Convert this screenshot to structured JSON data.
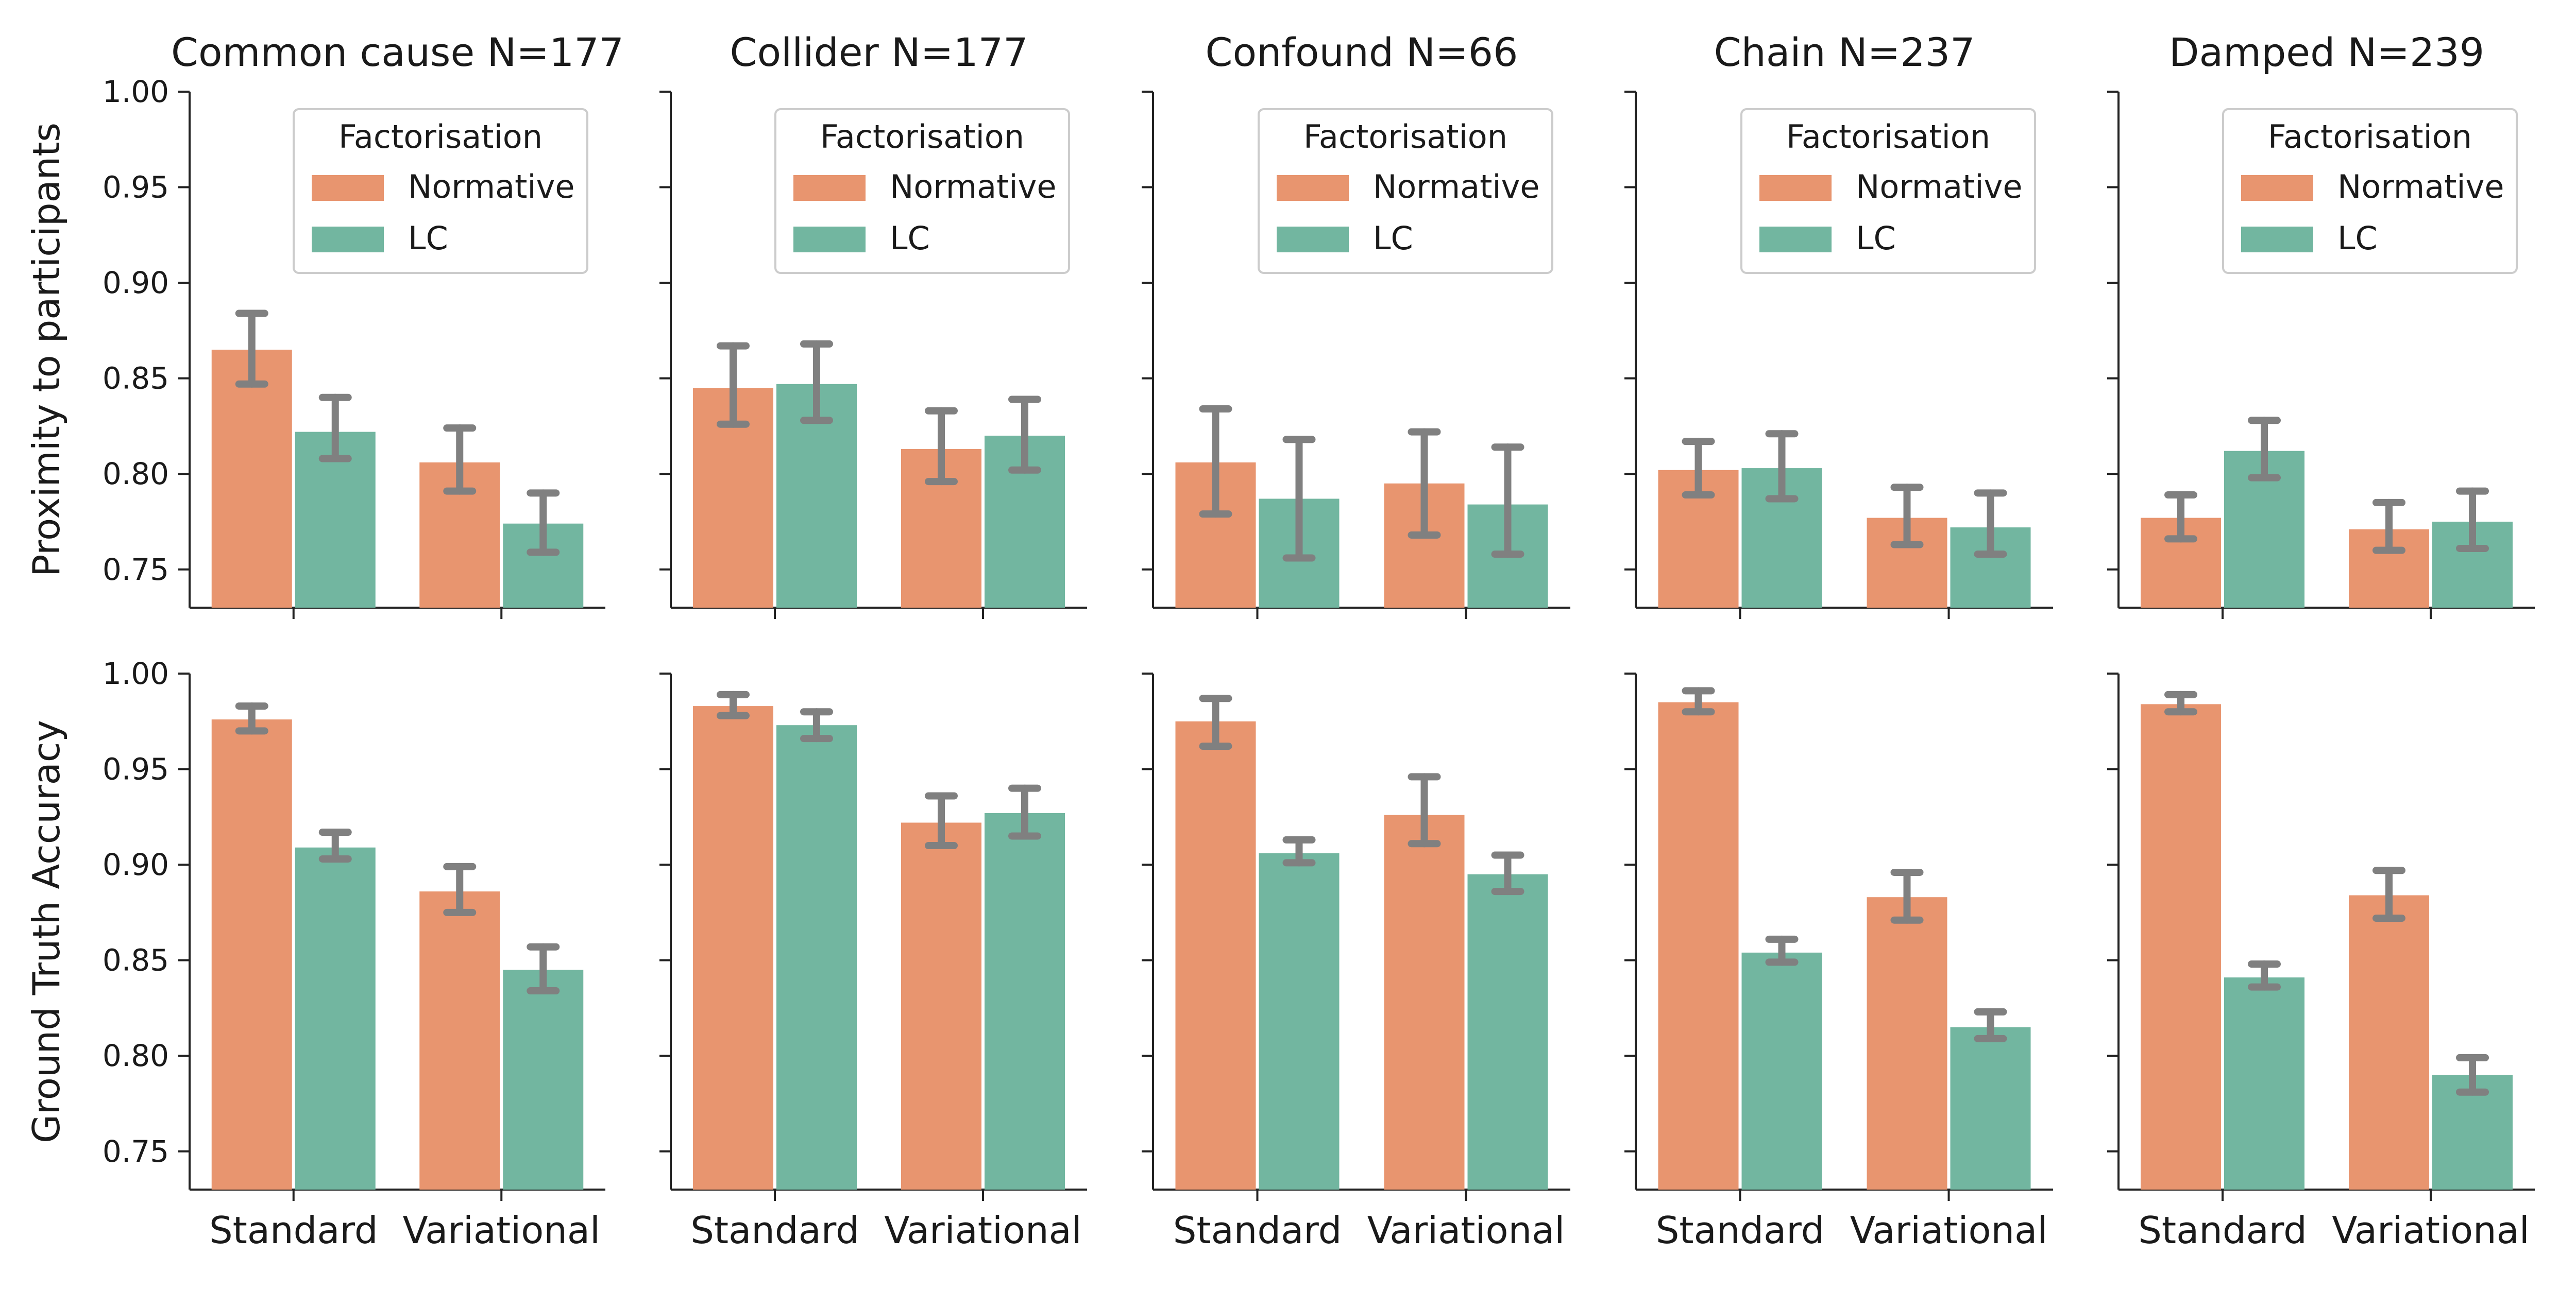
{
  "chart_data": {
    "type": "bar",
    "categories": [
      "Standard",
      "Variational"
    ],
    "legend": {
      "title": "Factorisation",
      "placement": "top-right"
    },
    "series_names": [
      "Normative",
      "LC"
    ],
    "colors": {
      "Normative": "#e8956f",
      "LC": "#72b6a0",
      "error_bar": "#808080",
      "axis": "#222222"
    },
    "ylim": [
      0.73,
      1.0
    ],
    "yticks": [
      "0.75",
      "0.80",
      "0.85",
      "0.90",
      "0.95",
      "1.00"
    ],
    "row_labels": [
      "Proximity to participants",
      "Ground Truth Accuracy"
    ],
    "panels": [
      {
        "title": "Common cause N=177",
        "rows": [
          {
            "series": [
              {
                "name": "Normative",
                "values": [
                  0.865,
                  0.806
                ],
                "err_low": [
                  0.847,
                  0.791
                ],
                "err_high": [
                  0.884,
                  0.824
                ]
              },
              {
                "name": "LC",
                "values": [
                  0.822,
                  0.774
                ],
                "err_low": [
                  0.808,
                  0.759
                ],
                "err_high": [
                  0.84,
                  0.79
                ]
              }
            ]
          },
          {
            "series": [
              {
                "name": "Normative",
                "values": [
                  0.976,
                  0.886
                ],
                "err_low": [
                  0.97,
                  0.875
                ],
                "err_high": [
                  0.983,
                  0.899
                ]
              },
              {
                "name": "LC",
                "values": [
                  0.909,
                  0.845
                ],
                "err_low": [
                  0.903,
                  0.834
                ],
                "err_high": [
                  0.917,
                  0.857
                ]
              }
            ]
          }
        ]
      },
      {
        "title": "Collider N=177",
        "rows": [
          {
            "series": [
              {
                "name": "Normative",
                "values": [
                  0.845,
                  0.813
                ],
                "err_low": [
                  0.826,
                  0.796
                ],
                "err_high": [
                  0.867,
                  0.833
                ]
              },
              {
                "name": "LC",
                "values": [
                  0.847,
                  0.82
                ],
                "err_low": [
                  0.828,
                  0.802
                ],
                "err_high": [
                  0.868,
                  0.839
                ]
              }
            ]
          },
          {
            "series": [
              {
                "name": "Normative",
                "values": [
                  0.983,
                  0.922
                ],
                "err_low": [
                  0.978,
                  0.91
                ],
                "err_high": [
                  0.989,
                  0.936
                ]
              },
              {
                "name": "LC",
                "values": [
                  0.973,
                  0.927
                ],
                "err_low": [
                  0.966,
                  0.915
                ],
                "err_high": [
                  0.98,
                  0.94
                ]
              }
            ]
          }
        ]
      },
      {
        "title": "Confound N=66",
        "rows": [
          {
            "series": [
              {
                "name": "Normative",
                "values": [
                  0.806,
                  0.795
                ],
                "err_low": [
                  0.779,
                  0.768
                ],
                "err_high": [
                  0.834,
                  0.822
                ]
              },
              {
                "name": "LC",
                "values": [
                  0.787,
                  0.784
                ],
                "err_low": [
                  0.756,
                  0.758
                ],
                "err_high": [
                  0.818,
                  0.814
                ]
              }
            ]
          },
          {
            "series": [
              {
                "name": "Normative",
                "values": [
                  0.975,
                  0.926
                ],
                "err_low": [
                  0.962,
                  0.911
                ],
                "err_high": [
                  0.987,
                  0.946
                ]
              },
              {
                "name": "LC",
                "values": [
                  0.906,
                  0.895
                ],
                "err_low": [
                  0.901,
                  0.886
                ],
                "err_high": [
                  0.913,
                  0.905
                ]
              }
            ]
          }
        ]
      },
      {
        "title": "Chain N=237",
        "rows": [
          {
            "series": [
              {
                "name": "Normative",
                "values": [
                  0.802,
                  0.777
                ],
                "err_low": [
                  0.789,
                  0.763
                ],
                "err_high": [
                  0.817,
                  0.793
                ]
              },
              {
                "name": "LC",
                "values": [
                  0.803,
                  0.772
                ],
                "err_low": [
                  0.787,
                  0.758
                ],
                "err_high": [
                  0.821,
                  0.79
                ]
              }
            ]
          },
          {
            "series": [
              {
                "name": "Normative",
                "values": [
                  0.985,
                  0.883
                ],
                "err_low": [
                  0.98,
                  0.871
                ],
                "err_high": [
                  0.991,
                  0.896
                ]
              },
              {
                "name": "LC",
                "values": [
                  0.854,
                  0.815
                ],
                "err_low": [
                  0.849,
                  0.809
                ],
                "err_high": [
                  0.861,
                  0.823
                ]
              }
            ]
          }
        ]
      },
      {
        "title": "Damped N=239",
        "rows": [
          {
            "series": [
              {
                "name": "Normative",
                "values": [
                  0.777,
                  0.771
                ],
                "err_low": [
                  0.766,
                  0.76
                ],
                "err_high": [
                  0.789,
                  0.785
                ]
              },
              {
                "name": "LC",
                "values": [
                  0.812,
                  0.775
                ],
                "err_low": [
                  0.798,
                  0.761
                ],
                "err_high": [
                  0.828,
                  0.791
                ]
              }
            ]
          },
          {
            "series": [
              {
                "name": "Normative",
                "values": [
                  0.984,
                  0.884
                ],
                "err_low": [
                  0.98,
                  0.872
                ],
                "err_high": [
                  0.989,
                  0.897
                ]
              },
              {
                "name": "LC",
                "values": [
                  0.841,
                  0.79
                ],
                "err_low": [
                  0.836,
                  0.781
                ],
                "err_high": [
                  0.848,
                  0.799
                ]
              }
            ]
          }
        ]
      }
    ]
  }
}
